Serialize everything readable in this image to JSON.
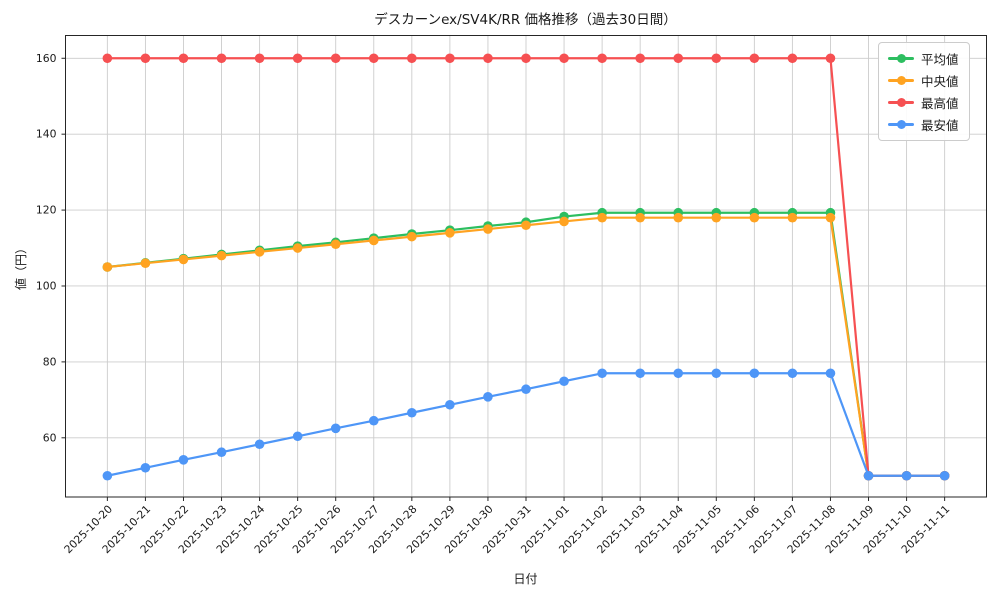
{
  "chart_data": {
    "type": "line",
    "title": "デスカーンex/SV4K/RR  価格推移（過去30日間）",
    "xlabel": "日付",
    "ylabel": "値（円）",
    "categories": [
      "2025-10-20",
      "2025-10-21",
      "2025-10-22",
      "2025-10-23",
      "2025-10-24",
      "2025-10-25",
      "2025-10-26",
      "2025-10-27",
      "2025-10-28",
      "2025-10-29",
      "2025-10-30",
      "2025-10-31",
      "2025-11-01",
      "2025-11-02",
      "2025-11-03",
      "2025-11-04",
      "2025-11-05",
      "2025-11-06",
      "2025-11-07",
      "2025-11-08",
      "2025-11-09",
      "2025-11-10",
      "2025-11-11"
    ],
    "series": [
      {
        "key": "average",
        "name": "平均値",
        "color": "#2dbe60",
        "values": [
          105,
          106.1,
          107.2,
          108.3,
          109.4,
          110.5,
          111.5,
          112.6,
          113.7,
          114.7,
          115.8,
          116.8,
          118.3,
          119.3,
          119.3,
          119.3,
          119.3,
          119.3,
          119.3,
          119.3,
          50,
          50,
          50
        ]
      },
      {
        "key": "median",
        "name": "中央値",
        "color": "#ffa321",
        "values": [
          105,
          106,
          107,
          108,
          109,
          110,
          111,
          112,
          113,
          114,
          115,
          116,
          117,
          118,
          118,
          118,
          118,
          118,
          118,
          118,
          50,
          50,
          50
        ]
      },
      {
        "key": "max",
        "name": "最高値",
        "color": "#f65052",
        "values": [
          160,
          160,
          160,
          160,
          160,
          160,
          160,
          160,
          160,
          160,
          160,
          160,
          160,
          160,
          160,
          160,
          160,
          160,
          160,
          160,
          50,
          50,
          50
        ]
      },
      {
        "key": "min",
        "name": "最安値",
        "color": "#4e96f7",
        "values": [
          50,
          52.1,
          54.2,
          56.2,
          58.3,
          60.4,
          62.5,
          64.5,
          66.6,
          68.7,
          70.8,
          72.8,
          74.9,
          77,
          77,
          77,
          77,
          77,
          77,
          77,
          50,
          50,
          50
        ]
      }
    ],
    "yticks": [
      60,
      80,
      100,
      120,
      140,
      160
    ],
    "ylim": [
      44.4,
      166.0
    ],
    "grid": true,
    "legend_position": "upper right"
  }
}
